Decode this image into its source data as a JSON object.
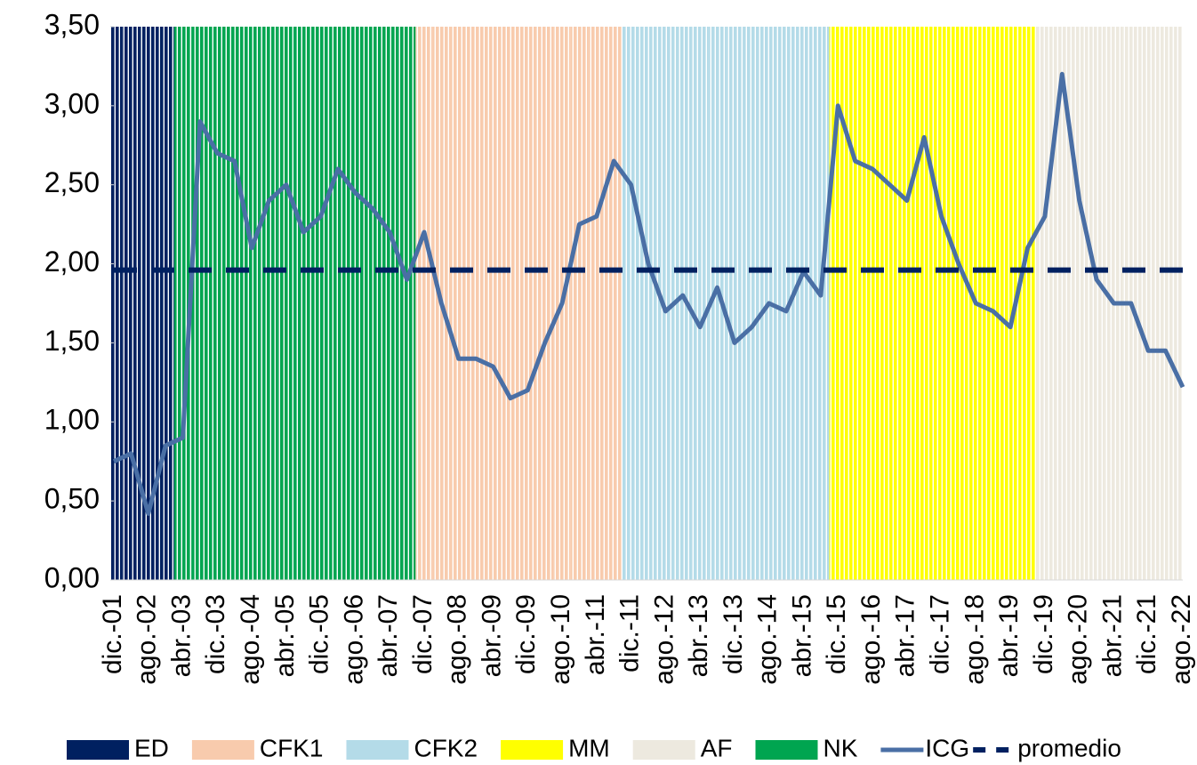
{
  "chart_data": {
    "type": "combo",
    "categories": [
      "dic.-01",
      null,
      "ago.-02",
      null,
      "abr.-03",
      null,
      "dic.-03",
      null,
      "ago.-04",
      null,
      "abr.-05",
      null,
      "dic.-05",
      null,
      "ago.-06",
      null,
      "abr.-07",
      null,
      "dic.-07",
      null,
      "ago.-08",
      null,
      "abr.-09",
      null,
      "dic.-09",
      null,
      "ago.-10",
      null,
      "abr.-11",
      null,
      "dic.-11",
      null,
      "ago.-12",
      null,
      "abr.-13",
      null,
      "dic.-13",
      null,
      "ago.-14",
      null,
      "abr.-15",
      null,
      "dic.-15",
      null,
      "ago.-16",
      null,
      "abr.-17",
      null,
      "dic.-17",
      null,
      "ago.-18",
      null,
      "abr.-19",
      null,
      "dic.-19",
      null,
      "ago.-20",
      null,
      "abr.-21",
      null,
      "dic.-21",
      null,
      "ago.-22"
    ],
    "ylim": [
      0,
      3.5
    ],
    "yticks": [
      {
        "value": 0,
        "label": "0,00"
      },
      {
        "value": 0.5,
        "label": "0,50"
      },
      {
        "value": 1,
        "label": "1,00"
      },
      {
        "value": 1.5,
        "label": "1,50"
      },
      {
        "value": 2,
        "label": "2,00"
      },
      {
        "value": 2.5,
        "label": "2,50"
      },
      {
        "value": 3,
        "label": "3,00"
      },
      {
        "value": 3.5,
        "label": "3,50"
      }
    ],
    "grid": false,
    "legend": "bottom",
    "series": [
      {
        "name": "ED",
        "type": "bar",
        "color": "#002060",
        "values": [
          3.5,
          3.5,
          3.5,
          3.5,
          null,
          null,
          null,
          null,
          null,
          null,
          null,
          null,
          null,
          null,
          null,
          null,
          null,
          null,
          null,
          null,
          null,
          null,
          null,
          null,
          null,
          null,
          null,
          null,
          null,
          null,
          null,
          null,
          null,
          null,
          null,
          null,
          null,
          null,
          null,
          null,
          null,
          null,
          null,
          null,
          null,
          null,
          null,
          null,
          null,
          null,
          null,
          null,
          null,
          null,
          null,
          null,
          null,
          null,
          null,
          null,
          null,
          null,
          null
        ]
      },
      {
        "name": "CFK1",
        "type": "bar",
        "color": "#f8cbad",
        "values": [
          null,
          null,
          null,
          null,
          null,
          null,
          null,
          null,
          null,
          null,
          null,
          null,
          null,
          null,
          null,
          null,
          null,
          null,
          3.5,
          3.5,
          3.5,
          3.5,
          3.5,
          3.5,
          3.5,
          3.5,
          3.5,
          3.5,
          3.5,
          3.5,
          null,
          null,
          null,
          null,
          null,
          null,
          null,
          null,
          null,
          null,
          null,
          null,
          null,
          null,
          null,
          null,
          null,
          null,
          null,
          null,
          null,
          null,
          null,
          null,
          null,
          null,
          null,
          null,
          null,
          null,
          null,
          null,
          null
        ]
      },
      {
        "name": "CFK2",
        "type": "bar",
        "color": "#b4dbe8",
        "values": [
          null,
          null,
          null,
          null,
          null,
          null,
          null,
          null,
          null,
          null,
          null,
          null,
          null,
          null,
          null,
          null,
          null,
          null,
          null,
          null,
          null,
          null,
          null,
          null,
          null,
          null,
          null,
          null,
          null,
          null,
          3.5,
          3.5,
          3.5,
          3.5,
          3.5,
          3.5,
          3.5,
          3.5,
          3.5,
          3.5,
          3.5,
          3.5,
          null,
          null,
          null,
          null,
          null,
          null,
          null,
          null,
          null,
          null,
          null,
          null,
          null,
          null,
          null,
          null,
          null,
          null,
          null,
          null,
          null
        ]
      },
      {
        "name": "MM",
        "type": "bar",
        "color": "#ffff00",
        "values": [
          null,
          null,
          null,
          null,
          null,
          null,
          null,
          null,
          null,
          null,
          null,
          null,
          null,
          null,
          null,
          null,
          null,
          null,
          null,
          null,
          null,
          null,
          null,
          null,
          null,
          null,
          null,
          null,
          null,
          null,
          null,
          null,
          null,
          null,
          null,
          null,
          null,
          null,
          null,
          null,
          null,
          null,
          3.5,
          3.5,
          3.5,
          3.5,
          3.5,
          3.5,
          3.5,
          3.5,
          3.5,
          3.5,
          3.5,
          3.5,
          null,
          null,
          null,
          null,
          null,
          null,
          null,
          null,
          null
        ]
      },
      {
        "name": "AF",
        "type": "bar",
        "color": "#ede9df",
        "values": [
          null,
          null,
          null,
          null,
          null,
          null,
          null,
          null,
          null,
          null,
          null,
          null,
          null,
          null,
          null,
          null,
          null,
          null,
          null,
          null,
          null,
          null,
          null,
          null,
          null,
          null,
          null,
          null,
          null,
          null,
          null,
          null,
          null,
          null,
          null,
          null,
          null,
          null,
          null,
          null,
          null,
          null,
          null,
          null,
          null,
          null,
          null,
          null,
          null,
          null,
          null,
          null,
          null,
          null,
          3.5,
          3.5,
          3.5,
          3.5,
          3.5,
          3.5,
          3.5,
          3.5,
          3.5
        ]
      },
      {
        "name": "NK",
        "type": "bar",
        "color": "#00a550",
        "values": [
          null,
          null,
          null,
          null,
          3.5,
          3.5,
          3.5,
          3.5,
          3.5,
          3.5,
          3.5,
          3.5,
          3.5,
          3.5,
          3.5,
          3.5,
          3.5,
          3.5,
          null,
          null,
          null,
          null,
          null,
          null,
          null,
          null,
          null,
          null,
          null,
          null,
          null,
          null,
          null,
          null,
          null,
          null,
          null,
          null,
          null,
          null,
          null,
          null,
          null,
          null,
          null,
          null,
          null,
          null,
          null,
          null,
          null,
          null,
          null,
          null,
          null,
          null,
          null,
          null,
          null,
          null,
          null,
          null,
          null
        ]
      },
      {
        "name": "ICG",
        "type": "line",
        "color": "#4a6fa5",
        "values": [
          0.75,
          0.8,
          0.42,
          0.85,
          0.9,
          2.9,
          2.7,
          2.65,
          2.1,
          2.4,
          2.5,
          2.2,
          2.3,
          2.6,
          2.45,
          2.35,
          2.2,
          1.9,
          2.2,
          1.75,
          1.4,
          1.4,
          1.35,
          1.15,
          1.2,
          1.5,
          1.75,
          2.25,
          2.3,
          2.65,
          2.5,
          2.0,
          1.7,
          1.8,
          1.6,
          1.85,
          1.5,
          1.6,
          1.75,
          1.7,
          1.95,
          1.8,
          3.0,
          2.65,
          2.6,
          2.5,
          2.4,
          2.8,
          2.3,
          2.0,
          1.75,
          1.7,
          1.6,
          2.1,
          2.3,
          3.2,
          2.4,
          1.9,
          1.75,
          1.75,
          1.45,
          1.45,
          1.22
        ]
      },
      {
        "name": "promedio",
        "type": "hline",
        "color": "#002060",
        "value": 1.96
      }
    ]
  }
}
